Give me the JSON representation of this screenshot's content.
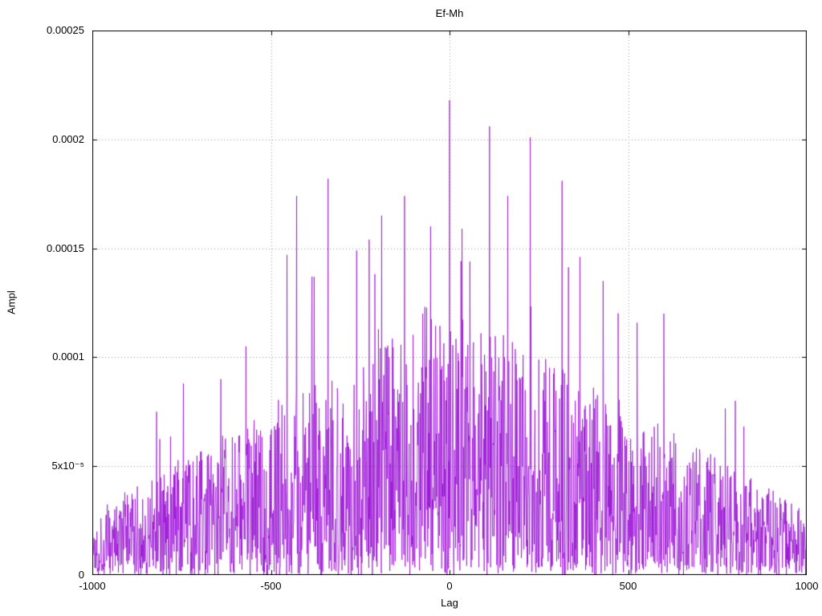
{
  "title": "Ef-Mh",
  "colors": {
    "line": "#9400d3",
    "grid": "#9a9a9a",
    "border": "#000000",
    "background": "#ffffff"
  },
  "chart_data": {
    "type": "line",
    "title": "Ef-Mh",
    "xlabel": "Lag",
    "ylabel": "Ampl",
    "xlim": [
      -1000,
      1000
    ],
    "ylim": [
      0,
      0.00025
    ],
    "grid": true,
    "legend": "none",
    "line_color": "#9400d3",
    "x_ticks": [
      {
        "value": -1000,
        "label": "-1000"
      },
      {
        "value": -500,
        "label": "-500"
      },
      {
        "value": 0,
        "label": "0"
      },
      {
        "value": 500,
        "label": "500"
      },
      {
        "value": 1000,
        "label": "1000"
      }
    ],
    "y_ticks": [
      {
        "value": 0,
        "label": "0"
      },
      {
        "value": 5e-05,
        "label": "5x10⁻⁵"
      },
      {
        "value": 0.0001,
        "label": "0.0001"
      },
      {
        "value": 0.00015,
        "label": "0.00015"
      },
      {
        "value": 0.0002,
        "label": "0.0002"
      },
      {
        "value": 0.00025,
        "label": "0.00025"
      }
    ],
    "series_description": "Dense noisy cross-correlation amplitude vs lag; spiky noise with roughly triangular envelope peaking near lag 0 (~1.2e-4 typical) and decaying to ~3e-5 at lags ±1000.",
    "noise_model": {
      "seed": 1337,
      "n_points": 2001,
      "envelope_edge": 3e-05,
      "envelope_peak": 0.000125,
      "exponent": 1.4,
      "outlier_prob": 0.03,
      "outlier_gain": 1.6
    },
    "notable_peaks": [
      {
        "x": 0,
        "y": 0.000218
      },
      {
        "x": 35,
        "y": 0.000159
      },
      {
        "x": 112,
        "y": 0.000206
      },
      {
        "x": 226,
        "y": 0.000201
      },
      {
        "x": 315,
        "y": 0.000181
      },
      {
        "x": 365,
        "y": 0.000146
      },
      {
        "x": 430,
        "y": 0.000135
      },
      {
        "x": 600,
        "y": 0.00012
      },
      {
        "x": 800,
        "y": 8e-05
      },
      {
        "x": -75,
        "y": 0.00012
      },
      {
        "x": -126,
        "y": 0.000174
      },
      {
        "x": -190,
        "y": 0.000165
      },
      {
        "x": -225,
        "y": 0.000154
      },
      {
        "x": -260,
        "y": 0.000149
      },
      {
        "x": -340,
        "y": 0.000182
      },
      {
        "x": -385,
        "y": 0.000137
      },
      {
        "x": -428,
        "y": 0.000174
      },
      {
        "x": -455,
        "y": 0.000147
      },
      {
        "x": -570,
        "y": 0.000105
      },
      {
        "x": -640,
        "y": 9e-05
      },
      {
        "x": -745,
        "y": 8.8e-05
      },
      {
        "x": -820,
        "y": 7.5e-05
      }
    ]
  }
}
